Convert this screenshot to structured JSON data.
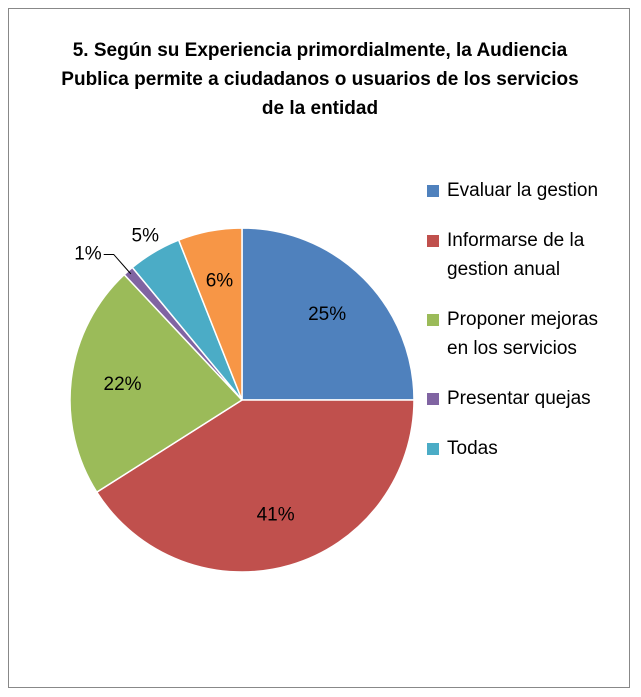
{
  "chart_data": {
    "type": "pie",
    "title": "5. Según su Experiencia primordialmente, la Audiencia Publica permite a ciudadanos o usuarios de los servicios de la entidad",
    "categories": [
      "Evaluar la gestion",
      "Informarse de la gestion anual",
      "Proponer mejoras en los servicios",
      "Presentar quejas",
      "Todas",
      null
    ],
    "values": [
      25,
      41,
      22,
      1,
      5,
      6
    ],
    "value_labels": [
      "25%",
      "41%",
      "22%",
      "1%",
      "5%",
      "6%"
    ],
    "colors": [
      "#4f81bd",
      "#c0504d",
      "#9bbb59",
      "#8064a2",
      "#4bacc6",
      "#f79646"
    ],
    "legend": "right"
  }
}
